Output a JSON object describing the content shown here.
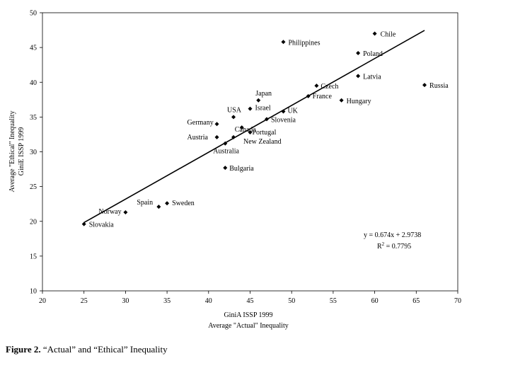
{
  "chart_data": {
    "type": "scatter",
    "xlabel": [
      "GiniA ISSP 1999",
      "Average \"Actual\" Inequality"
    ],
    "ylabel": [
      "Average \"Ethical\" Inequality",
      "GiniE ISSP 1999"
    ],
    "xlim": [
      20,
      70
    ],
    "ylim": [
      10,
      50
    ],
    "xticks": [
      20,
      25,
      30,
      35,
      40,
      45,
      50,
      55,
      60,
      65,
      70
    ],
    "yticks": [
      10,
      15,
      20,
      25,
      30,
      35,
      40,
      45,
      50
    ],
    "grid": false,
    "points": [
      {
        "label": "Chile",
        "x": 60,
        "y": 47.0
      },
      {
        "label": "Philippines",
        "x": 49,
        "y": 45.8
      },
      {
        "label": "Poland",
        "x": 58,
        "y": 44.2
      },
      {
        "label": "Latvia",
        "x": 58,
        "y": 40.9
      },
      {
        "label": "Russia",
        "x": 66,
        "y": 39.6
      },
      {
        "label": "Czech",
        "x": 53,
        "y": 39.5
      },
      {
        "label": "France",
        "x": 52,
        "y": 38.0
      },
      {
        "label": "Japan",
        "x": 46,
        "y": 37.4
      },
      {
        "label": "Hungary",
        "x": 56,
        "y": 37.4
      },
      {
        "label": "Israel",
        "x": 45,
        "y": 36.2
      },
      {
        "label": "UK",
        "x": 49,
        "y": 35.8
      },
      {
        "label": "USA",
        "x": 43,
        "y": 35.0
      },
      {
        "label": "Slovenia",
        "x": 47,
        "y": 34.7
      },
      {
        "label": "Germany",
        "x": 41,
        "y": 34.0
      },
      {
        "label": "Canada",
        "x": 44,
        "y": 33.5
      },
      {
        "label": "Portugal",
        "x": 45,
        "y": 32.8
      },
      {
        "label": "Austria",
        "x": 41,
        "y": 32.1
      },
      {
        "label": "New Zealand",
        "x": 43,
        "y": 32.1
      },
      {
        "label": "Australia",
        "x": 42,
        "y": 31.2
      },
      {
        "label": "Bulgaria",
        "x": 42,
        "y": 27.7
      },
      {
        "label": "Sweden",
        "x": 35,
        "y": 22.6
      },
      {
        "label": "Spain",
        "x": 34,
        "y": 22.1
      },
      {
        "label": "Norway",
        "x": 30,
        "y": 21.3
      },
      {
        "label": "Slovakia",
        "x": 25,
        "y": 19.6
      }
    ],
    "trendline": {
      "slope": 0.674,
      "intercept": 2.9738,
      "x_from": 25,
      "x_to": 66
    },
    "equation": "y = 0.674x + 2.9738",
    "r2_label": "R",
    "r2_exp": "2",
    "r2_value": " = 0.7795"
  },
  "caption": {
    "label": "Figure 2.",
    "text": " “Actual” and “Ethical” Inequality"
  }
}
